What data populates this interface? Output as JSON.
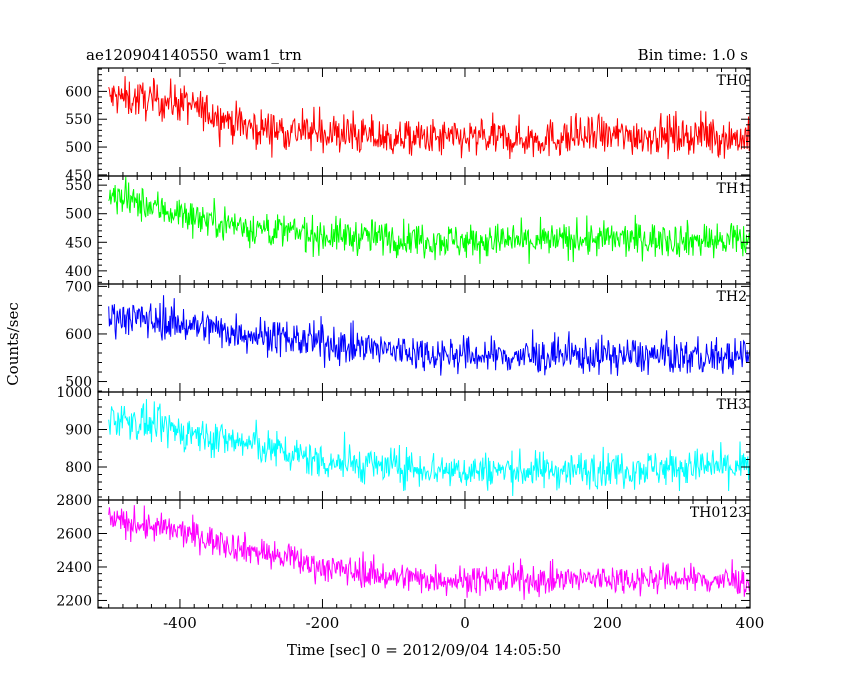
{
  "header": {
    "left_title": "ae120904140550_wam1_trn",
    "right_title": "Bin time: 1.0 s"
  },
  "chart_data": {
    "type": "line",
    "title": "ae120904140550_wam1_trn",
    "subtitle": "Bin time: 1.0 s",
    "xlabel": "Time [sec] 0 = 2012/09/04 14:05:50",
    "ylabel": "Counts/sec",
    "xlim": [
      -515,
      400
    ],
    "x_ticks": [
      -400,
      -200,
      0,
      200,
      400
    ],
    "grid": false,
    "panels": [
      {
        "name": "TH0",
        "color": "#ff0000",
        "ylim": [
          448,
          642
        ],
        "y_ticks": [
          450,
          500,
          550,
          600
        ],
        "trend": [
          [
            -500,
            590
          ],
          [
            -400,
            580
          ],
          [
            -300,
            535
          ],
          [
            -200,
            525
          ],
          [
            -100,
            515
          ],
          [
            0,
            515
          ],
          [
            100,
            515
          ],
          [
            200,
            520
          ],
          [
            300,
            522
          ],
          [
            400,
            515
          ]
        ],
        "noise": 32
      },
      {
        "name": "TH1",
        "color": "#00ff00",
        "ylim": [
          377,
          566
        ],
        "y_ticks": [
          400,
          450,
          500,
          550
        ],
        "trend": [
          [
            -500,
            530
          ],
          [
            -400,
            500
          ],
          [
            -300,
            475
          ],
          [
            -200,
            462
          ],
          [
            -100,
            458
          ],
          [
            0,
            452
          ],
          [
            100,
            452
          ],
          [
            200,
            455
          ],
          [
            300,
            455
          ],
          [
            400,
            450
          ]
        ],
        "noise": 28
      },
      {
        "name": "TH2",
        "color": "#0000ff",
        "ylim": [
          478,
          705
        ],
        "y_ticks": [
          500,
          600,
          700
        ],
        "trend": [
          [
            -500,
            640
          ],
          [
            -400,
            622
          ],
          [
            -300,
            600
          ],
          [
            -200,
            580
          ],
          [
            -100,
            565
          ],
          [
            0,
            555
          ],
          [
            100,
            552
          ],
          [
            200,
            555
          ],
          [
            300,
            553
          ],
          [
            400,
            550
          ]
        ],
        "noise": 35
      },
      {
        "name": "TH3",
        "color": "#00ffff",
        "ylim": [
          712,
          1000
        ],
        "y_ticks": [
          800,
          900,
          1000
        ],
        "trend": [
          [
            -500,
            935
          ],
          [
            -400,
            895
          ],
          [
            -300,
            860
          ],
          [
            -200,
            815
          ],
          [
            -100,
            800
          ],
          [
            0,
            790
          ],
          [
            100,
            790
          ],
          [
            200,
            795
          ],
          [
            300,
            800
          ],
          [
            400,
            800
          ]
        ],
        "noise": 45
      },
      {
        "name": "TH0123",
        "color": "#ff00ff",
        "ylim": [
          2155,
          2800
        ],
        "y_ticks": [
          2200,
          2400,
          2600,
          2800
        ],
        "trend": [
          [
            -500,
            2680
          ],
          [
            -400,
            2610
          ],
          [
            -300,
            2500
          ],
          [
            -200,
            2400
          ],
          [
            -100,
            2340
          ],
          [
            0,
            2320
          ],
          [
            100,
            2320
          ],
          [
            200,
            2330
          ],
          [
            300,
            2330
          ],
          [
            400,
            2310
          ]
        ],
        "noise": 80
      }
    ]
  }
}
